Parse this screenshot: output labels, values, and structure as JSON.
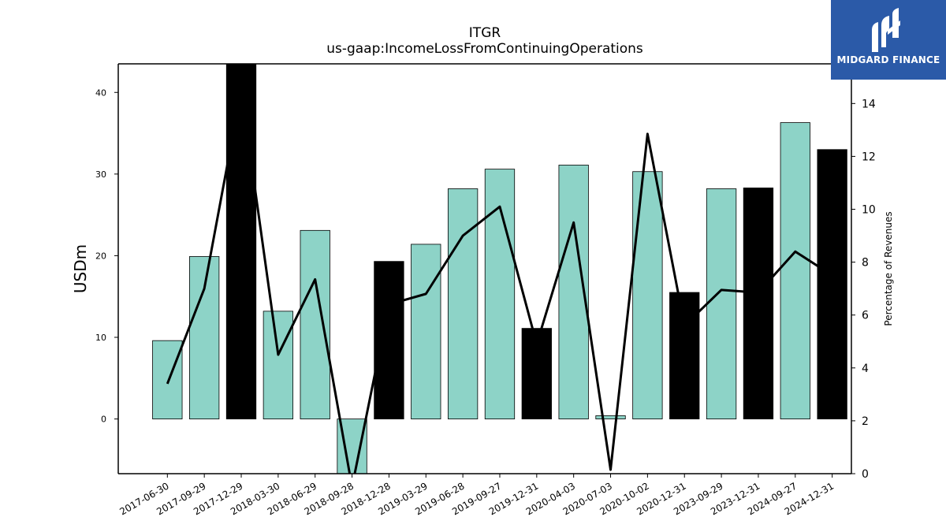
{
  "header": {
    "title": "ITGR",
    "subtitle": "us-gaap:IncomeLossFromContinuingOperations"
  },
  "logo": {
    "text": "MIDGARD FINANCE",
    "bg_color": "#2b5aa8"
  },
  "chart_data": {
    "type": "bar",
    "categories": [
      "2017-06-30",
      "2017-09-29",
      "2017-12-29",
      "2018-03-30",
      "2018-06-29",
      "2018-09-28",
      "2018-12-28",
      "2019-03-29",
      "2019-06-28",
      "2019-09-27",
      "2019-12-31",
      "2020-04-03",
      "2020-07-03",
      "2020-10-02",
      "2020-12-31",
      "2023-09-29",
      "2023-12-31",
      "2024-09-27",
      "2024-12-31"
    ],
    "series": [
      {
        "axis": "left",
        "type": "bar",
        "values": [
          9.6,
          19.9,
          43.5,
          13.2,
          23.1,
          -7.5,
          19.3,
          21.4,
          28.2,
          30.6,
          11.1,
          31.1,
          0.4,
          30.3,
          15.5,
          28.2,
          28.3,
          36.3,
          33.0
        ],
        "colors": [
          "#8dd3c7",
          "#8dd3c7",
          "#000000",
          "#8dd3c7",
          "#8dd3c7",
          "#8dd3c7",
          "#000000",
          "#8dd3c7",
          "#8dd3c7",
          "#8dd3c7",
          "#000000",
          "#8dd3c7",
          "#8dd3c7",
          "#8dd3c7",
          "#000000",
          "#8dd3c7",
          "#000000",
          "#8dd3c7",
          "#000000"
        ]
      },
      {
        "axis": "right",
        "type": "line",
        "color": "#000000",
        "values": [
          3.4,
          7.0,
          14.5,
          4.5,
          7.35,
          -0.5,
          6.4,
          6.8,
          9.0,
          10.1,
          4.9,
          9.5,
          0.15,
          12.85,
          5.6,
          6.95,
          6.85,
          8.4,
          7.5
        ]
      }
    ],
    "ylabel": "USDm",
    "y2label": "Percentage of Revenues",
    "ylim": [
      -6.7,
      43.5
    ],
    "y2lim": [
      0,
      15.5
    ],
    "yticks": [
      0,
      10,
      20,
      30,
      40
    ],
    "y2ticks": [
      0,
      2,
      4,
      6,
      8,
      10,
      12,
      14
    ],
    "grid": false
  }
}
